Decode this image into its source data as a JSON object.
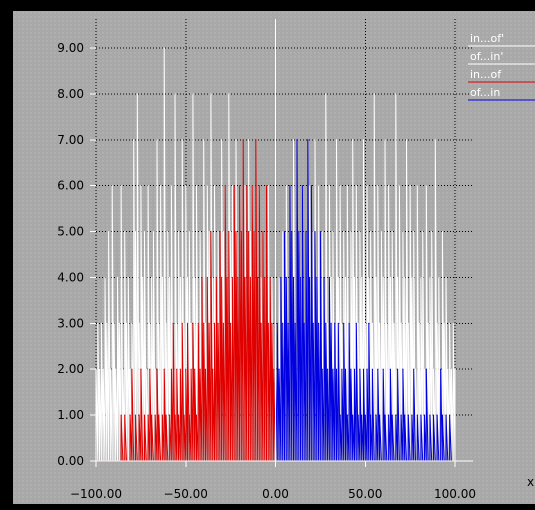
{
  "chart_data": {
    "type": "line",
    "title": "",
    "xlabel": "x",
    "ylabel": "",
    "xlim": [
      -100,
      100
    ],
    "ylim": [
      0,
      9
    ],
    "x_ticks": [
      {
        "value": -100,
        "label": "−100.00"
      },
      {
        "value": -50,
        "label": "−50.00"
      },
      {
        "value": 0,
        "label": "0.00"
      },
      {
        "value": 50,
        "label": "50.00"
      },
      {
        "value": 100,
        "label": "100.00"
      }
    ],
    "y_ticks": [
      {
        "value": 0,
        "label": "0.00"
      },
      {
        "value": 1,
        "label": "1.00"
      },
      {
        "value": 2,
        "label": "2.00"
      },
      {
        "value": 3,
        "label": "3.00"
      },
      {
        "value": 4,
        "label": "4.00"
      },
      {
        "value": 5,
        "label": "5.00"
      },
      {
        "value": 6,
        "label": "6.00"
      },
      {
        "value": 7,
        "label": "7.00"
      },
      {
        "value": 8,
        "label": "8.00"
      },
      {
        "value": 9,
        "label": "9.00"
      }
    ],
    "grid": true,
    "legend_position": "top-right",
    "colors": {
      "background": "#a8a8a8",
      "grid": "#000000",
      "axis": "#ffffff"
    },
    "series": [
      {
        "name": "in...of'",
        "color": "#ffffff",
        "x": [
          -100,
          -99,
          -98,
          -97,
          -96,
          -95,
          -94,
          -93,
          -92,
          -91,
          -90,
          -89,
          -88,
          -87,
          -86,
          -85,
          -84,
          -83,
          -82,
          -81,
          -80,
          -79,
          -78,
          -77,
          -76,
          -75,
          -74,
          -73,
          -72,
          -71,
          -70,
          -69,
          -68,
          -67,
          -66,
          -65,
          -64,
          -63,
          -62,
          -61,
          -60,
          -59,
          -58,
          -57,
          -56,
          -55,
          -54,
          -53,
          -52,
          -51,
          -50,
          -49,
          -48,
          -47,
          -46,
          -45,
          -44,
          -43,
          -42,
          -41,
          -40,
          -39,
          -38,
          -37,
          -36,
          -35,
          -34,
          -33,
          -32,
          -31,
          -30,
          -29,
          -28,
          -27,
          -26,
          -25,
          -24,
          -23,
          -22,
          -21,
          -20,
          -19,
          -18,
          -17,
          -16,
          -15,
          -14,
          -13,
          -12,
          -11,
          -10,
          -9,
          -8,
          -7,
          -6,
          -5,
          -4,
          -3,
          -2,
          -1,
          0
        ],
        "y": [
          2,
          3,
          2,
          3,
          2,
          4,
          3,
          5,
          2,
          6,
          3,
          2,
          4,
          3,
          6,
          2,
          5,
          3,
          4,
          2,
          3,
          7,
          5,
          8,
          3,
          6,
          4,
          5,
          2,
          6,
          3,
          4,
          5,
          2,
          7,
          3,
          6,
          4,
          9,
          3,
          5,
          4,
          6,
          2,
          8,
          3,
          5,
          4,
          7,
          3,
          6,
          4,
          5,
          3,
          8,
          4,
          6,
          3,
          5,
          4,
          7,
          3,
          6,
          5,
          8,
          4,
          6,
          3,
          5,
          4,
          7,
          5,
          6,
          4,
          8,
          5,
          6,
          4,
          7,
          3,
          6,
          5,
          4,
          6,
          3,
          7,
          5,
          6,
          4,
          5,
          3,
          6,
          4,
          5,
          3,
          4,
          6,
          3,
          4,
          2,
          2
        ]
      },
      {
        "name": "of...in'",
        "color": "#ffffff",
        "x": [
          0,
          1,
          2,
          3,
          4,
          5,
          6,
          7,
          8,
          9,
          10,
          11,
          12,
          13,
          14,
          15,
          16,
          17,
          18,
          19,
          20,
          21,
          22,
          23,
          24,
          25,
          26,
          27,
          28,
          29,
          30,
          31,
          32,
          33,
          34,
          35,
          36,
          37,
          38,
          39,
          40,
          41,
          42,
          43,
          44,
          45,
          46,
          47,
          48,
          49,
          50,
          51,
          52,
          53,
          54,
          55,
          56,
          57,
          58,
          59,
          60,
          61,
          62,
          63,
          64,
          65,
          66,
          67,
          68,
          69,
          70,
          71,
          72,
          73,
          74,
          75,
          76,
          77,
          78,
          79,
          80,
          81,
          82,
          83,
          84,
          85,
          86,
          87,
          88,
          89,
          90,
          91,
          92,
          93,
          94,
          95,
          96,
          97,
          98,
          99,
          100
        ],
        "y": [
          2,
          3,
          4,
          3,
          5,
          4,
          6,
          3,
          5,
          4,
          7,
          3,
          6,
          5,
          4,
          6,
          3,
          5,
          4,
          6,
          3,
          5,
          7,
          4,
          6,
          3,
          5,
          4,
          8,
          3,
          6,
          4,
          5,
          3,
          7,
          4,
          6,
          3,
          5,
          4,
          6,
          3,
          5,
          7,
          4,
          6,
          3,
          5,
          4,
          7,
          3,
          6,
          4,
          5,
          3,
          8,
          4,
          6,
          3,
          5,
          4,
          7,
          3,
          6,
          4,
          5,
          3,
          8,
          4,
          6,
          3,
          5,
          4,
          7,
          3,
          6,
          4,
          5,
          2,
          6,
          3,
          4,
          5,
          2,
          6,
          3,
          4,
          5,
          2,
          7,
          3,
          4,
          2,
          5,
          3,
          4,
          2,
          3,
          2,
          3,
          2
        ]
      },
      {
        "name": "in...of",
        "color": "#e00000",
        "x": [
          -100,
          -99,
          -98,
          -97,
          -96,
          -95,
          -94,
          -93,
          -92,
          -91,
          -90,
          -89,
          -88,
          -87,
          -86,
          -85,
          -84,
          -83,
          -82,
          -81,
          -80,
          -79,
          -78,
          -77,
          -76,
          -75,
          -74,
          -73,
          -72,
          -71,
          -70,
          -69,
          -68,
          -67,
          -66,
          -65,
          -64,
          -63,
          -62,
          -61,
          -60,
          -59,
          -58,
          -57,
          -56,
          -55,
          -54,
          -53,
          -52,
          -51,
          -50,
          -49,
          -48,
          -47,
          -46,
          -45,
          -44,
          -43,
          -42,
          -41,
          -40,
          -39,
          -38,
          -37,
          -36,
          -35,
          -34,
          -33,
          -32,
          -31,
          -30,
          -29,
          -28,
          -27,
          -26,
          -25,
          -24,
          -23,
          -22,
          -21,
          -20,
          -19,
          -18,
          -17,
          -16,
          -15,
          -14,
          -13,
          -12,
          -11,
          -10,
          -9,
          -8,
          -7,
          -6,
          -5,
          -4,
          -3,
          -2,
          -1,
          0
        ],
        "y": [
          0,
          0,
          0,
          0,
          0,
          0,
          0,
          0,
          0,
          0,
          0,
          0,
          0,
          0,
          1,
          0,
          1,
          0,
          0,
          1,
          2,
          0,
          1,
          0,
          1,
          2,
          0,
          1,
          0,
          1,
          2,
          1,
          0,
          1,
          2,
          1,
          0,
          1,
          2,
          1,
          0,
          1,
          2,
          3,
          1,
          2,
          1,
          2,
          3,
          1,
          2,
          3,
          1,
          2,
          3,
          2,
          1,
          3,
          2,
          4,
          3,
          2,
          4,
          3,
          5,
          2,
          3,
          4,
          3,
          5,
          4,
          3,
          6,
          4,
          5,
          3,
          4,
          6,
          5,
          4,
          6,
          5,
          7,
          4,
          6,
          5,
          4,
          6,
          5,
          7,
          4,
          6,
          3,
          5,
          4,
          6,
          3,
          4,
          3,
          2,
          2
        ]
      },
      {
        "name": "of...in",
        "color": "#0000e0",
        "x": [
          0,
          1,
          2,
          3,
          4,
          5,
          6,
          7,
          8,
          9,
          10,
          11,
          12,
          13,
          14,
          15,
          16,
          17,
          18,
          19,
          20,
          21,
          22,
          23,
          24,
          25,
          26,
          27,
          28,
          29,
          30,
          31,
          32,
          33,
          34,
          35,
          36,
          37,
          38,
          39,
          40,
          41,
          42,
          43,
          44,
          45,
          46,
          47,
          48,
          49,
          50,
          51,
          52,
          53,
          54,
          55,
          56,
          57,
          58,
          59,
          60,
          61,
          62,
          63,
          64,
          65,
          66,
          67,
          68,
          69,
          70,
          71,
          72,
          73,
          74,
          75,
          76,
          77,
          78,
          79,
          80,
          81,
          82,
          83,
          84,
          85,
          86,
          87,
          88,
          89,
          90,
          91,
          92,
          93,
          94,
          95,
          96,
          97,
          98,
          99,
          100
        ],
        "y": [
          2,
          3,
          2,
          4,
          3,
          5,
          4,
          3,
          6,
          5,
          4,
          3,
          7,
          5,
          4,
          6,
          3,
          5,
          7,
          4,
          6,
          3,
          5,
          4,
          3,
          5,
          2,
          4,
          3,
          2,
          4,
          3,
          2,
          3,
          2,
          3,
          1,
          2,
          3,
          2,
          1,
          3,
          2,
          1,
          2,
          3,
          1,
          2,
          1,
          2,
          1,
          2,
          3,
          1,
          2,
          0,
          1,
          2,
          1,
          0,
          2,
          1,
          0,
          1,
          2,
          1,
          0,
          1,
          2,
          0,
          1,
          2,
          1,
          0,
          1,
          0,
          1,
          2,
          0,
          1,
          0,
          1,
          0,
          1,
          2,
          0,
          1,
          0,
          1,
          0,
          1,
          0,
          2,
          1,
          0,
          1,
          0,
          1,
          0,
          0,
          0
        ]
      }
    ]
  }
}
